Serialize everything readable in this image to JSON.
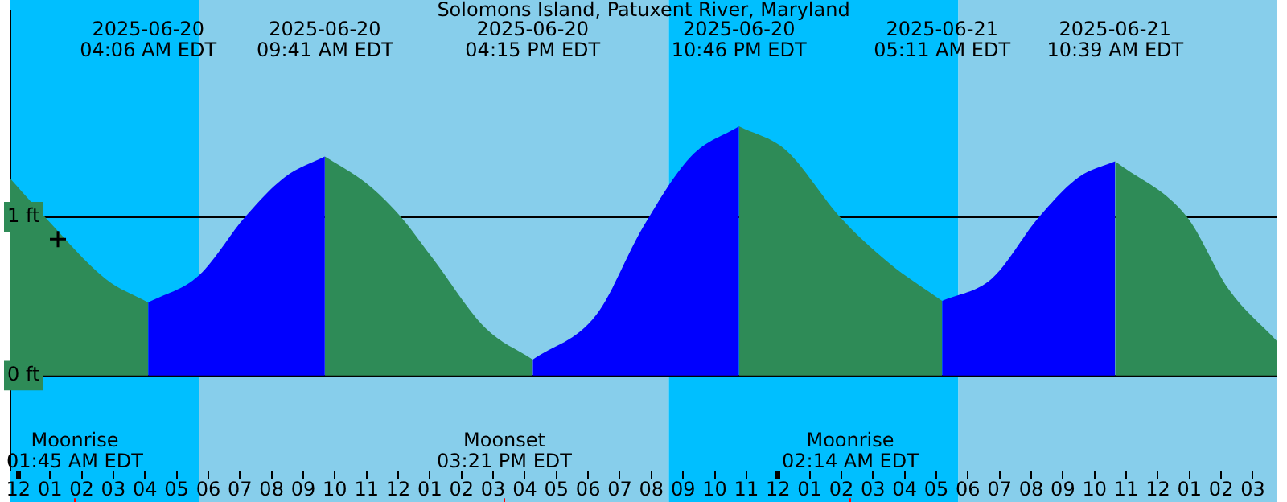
{
  "chart_data": {
    "type": "area",
    "title": "Solomons Island, Patuxent River, Maryland",
    "xlim": [
      "2025-06-19T23:45",
      "2025-06-21T15:45"
    ],
    "xticks": [
      {
        "value": "2025-06-20T00:00",
        "label": "12"
      },
      {
        "value": "2025-06-20T01:00",
        "label": "01"
      },
      {
        "value": "2025-06-20T02:00",
        "label": "02"
      },
      {
        "value": "2025-06-20T03:00",
        "label": "03"
      },
      {
        "value": "2025-06-20T04:00",
        "label": "04"
      },
      {
        "value": "2025-06-20T05:00",
        "label": "05"
      },
      {
        "value": "2025-06-20T06:00",
        "label": "06"
      },
      {
        "value": "2025-06-20T07:00",
        "label": "07"
      },
      {
        "value": "2025-06-20T08:00",
        "label": "08"
      },
      {
        "value": "2025-06-20T09:00",
        "label": "09"
      },
      {
        "value": "2025-06-20T10:00",
        "label": "10"
      },
      {
        "value": "2025-06-20T11:00",
        "label": "11"
      },
      {
        "value": "2025-06-20T12:00",
        "label": "12"
      },
      {
        "value": "2025-06-20T13:00",
        "label": "01"
      },
      {
        "value": "2025-06-20T14:00",
        "label": "02"
      },
      {
        "value": "2025-06-20T15:00",
        "label": "03"
      },
      {
        "value": "2025-06-20T16:00",
        "label": "04"
      },
      {
        "value": "2025-06-20T17:00",
        "label": "05"
      },
      {
        "value": "2025-06-20T18:00",
        "label": "06"
      },
      {
        "value": "2025-06-20T19:00",
        "label": "07"
      },
      {
        "value": "2025-06-20T20:00",
        "label": "08"
      },
      {
        "value": "2025-06-20T21:00",
        "label": "09"
      },
      {
        "value": "2025-06-20T22:00",
        "label": "10"
      },
      {
        "value": "2025-06-20T23:00",
        "label": "11"
      },
      {
        "value": "2025-06-21T00:00",
        "label": "12"
      },
      {
        "value": "2025-06-21T01:00",
        "label": "01"
      },
      {
        "value": "2025-06-21T02:00",
        "label": "02"
      },
      {
        "value": "2025-06-21T03:00",
        "label": "03"
      },
      {
        "value": "2025-06-21T04:00",
        "label": "04"
      },
      {
        "value": "2025-06-21T05:00",
        "label": "05"
      },
      {
        "value": "2025-06-21T06:00",
        "label": "06"
      },
      {
        "value": "2025-06-21T07:00",
        "label": "07"
      },
      {
        "value": "2025-06-21T08:00",
        "label": "08"
      },
      {
        "value": "2025-06-21T09:00",
        "label": "09"
      },
      {
        "value": "2025-06-21T10:00",
        "label": "10"
      },
      {
        "value": "2025-06-21T11:00",
        "label": "11"
      },
      {
        "value": "2025-06-21T12:00",
        "label": "12"
      },
      {
        "value": "2025-06-21T13:00",
        "label": "01"
      },
      {
        "value": "2025-06-21T14:00",
        "label": "02"
      },
      {
        "value": "2025-06-21T15:00",
        "label": "03"
      }
    ],
    "ylim": [
      -0.6,
      2.3
    ],
    "yticks": [
      {
        "value": 0,
        "label": "0 ft"
      },
      {
        "value": 1,
        "label": "1 ft"
      }
    ],
    "grid": "y",
    "legend": false,
    "bands": [
      {
        "axis": "x",
        "from": "2025-06-19T23:45",
        "to": "2025-06-20T05:42",
        "color": "#00bfff"
      },
      {
        "axis": "x",
        "from": "2025-06-20T05:42",
        "to": "2025-06-20T20:33",
        "color": "#87ceeb"
      },
      {
        "axis": "x",
        "from": "2025-06-20T20:33",
        "to": "2025-06-21T05:42",
        "color": "#00bfff"
      },
      {
        "axis": "x",
        "from": "2025-06-21T05:42",
        "to": "2025-06-21T15:45",
        "color": "#87ceeb"
      }
    ],
    "ref_lines": [
      {
        "axis": "x",
        "value": "2025-06-20T01:45",
        "label": "Moonrise\n01:45 AM EDT",
        "color": "#ff0000"
      },
      {
        "axis": "x",
        "value": "2025-06-20T15:21",
        "label": "Moonset\n03:21 PM EDT",
        "color": "#ff0000"
      },
      {
        "axis": "x",
        "value": "2025-06-21T02:14",
        "label": "Moonrise\n02:14 AM EDT",
        "color": "#ff0000"
      }
    ],
    "series": [
      {
        "color": "#2e8b57",
        "x": [
          "2025-06-19T23:45",
          "2025-06-20T00:50",
          "2025-06-20T02:45",
          "2025-06-20T04:06"
        ],
        "values": [
          1.24,
          1,
          0.61,
          0.46
        ]
      },
      {
        "color": "#0000ff",
        "x": [
          "2025-06-20T04:06",
          "2025-06-20T05:42",
          "2025-06-20T07:10",
          "2025-06-20T08:25",
          "2025-06-20T09:41"
        ],
        "values": [
          0.46,
          0.63,
          1,
          1.25,
          1.38
        ]
      },
      {
        "color": "#2e8b57",
        "x": [
          "2025-06-20T09:41",
          "2025-06-20T11:00",
          "2025-06-20T12:05",
          "2025-06-20T13:05",
          "2025-06-20T14:45",
          "2025-06-20T16:15"
        ],
        "values": [
          1.38,
          1.21,
          1,
          0.74,
          0.3,
          0.1
        ]
      },
      {
        "color": "#0000ff",
        "x": [
          "2025-06-20T16:15",
          "2025-06-20T18:15",
          "2025-06-20T19:45",
          "2025-06-20T21:15",
          "2025-06-20T22:46"
        ],
        "values": [
          0.1,
          0.38,
          0.94,
          1.38,
          1.57
        ]
      },
      {
        "color": "#2e8b57",
        "x": [
          "2025-06-20T22:46",
          "2025-06-21T00:15",
          "2025-06-21T01:57",
          "2025-06-21T03:30",
          "2025-06-21T05:11"
        ],
        "values": [
          1.57,
          1.42,
          1,
          0.71,
          0.47
        ]
      },
      {
        "color": "#0000ff",
        "x": [
          "2025-06-21T05:11",
          "2025-06-21T06:45",
          "2025-06-21T08:15",
          "2025-06-21T09:30",
          "2025-06-21T10:39"
        ],
        "values": [
          0.47,
          0.61,
          1,
          1.25,
          1.35
        ]
      },
      {
        "color": "#2e8b57",
        "x": [
          "2025-06-21T10:39",
          "2025-06-21T12:55",
          "2025-06-21T14:15",
          "2025-06-21T15:45"
        ],
        "values": [
          1.35,
          1,
          0.54,
          0.22
        ]
      },
      {
        "type": "scatter",
        "color": "#000000",
        "marker": "cross",
        "x": [
          "2025-06-20T01:15"
        ],
        "values": [
          0.86
        ]
      }
    ],
    "annotations": [
      "2025-06-20\n04:06 AM EDT",
      "2025-06-20\n09:41 AM EDT",
      "2025-06-20\n04:15 PM EDT",
      "2025-06-20\n10:46 PM EDT",
      "2025-06-21\n05:11 AM EDT",
      "2025-06-21\n10:39 AM EDT"
    ]
  }
}
